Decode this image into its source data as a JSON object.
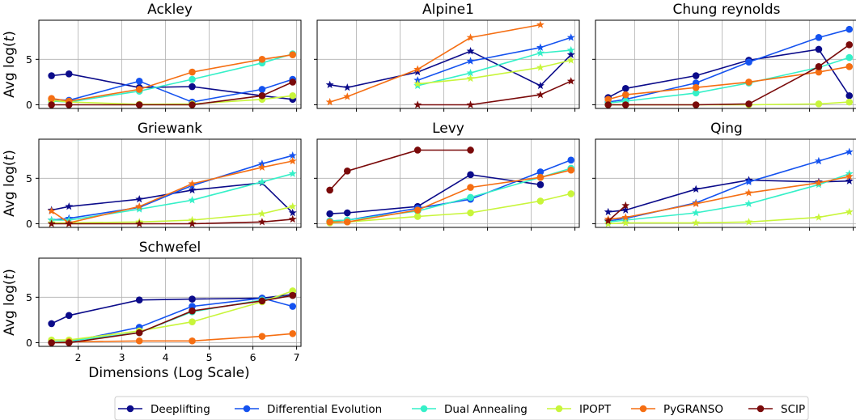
{
  "figure": {
    "xlabel": "Dimensions (Log Scale)",
    "ylabel": "Avg log(",
    "ylabel_var": "t",
    "ylabel_close": ")"
  },
  "colors": {
    "Deeplifting": "#0b0b8a",
    "Differential Evolution": "#1452ef",
    "Dual Annealing": "#35f0c8",
    "IPOPT": "#c8f53a",
    "PyGRANSO": "#f56e12",
    "SCIP": "#7a0a0a"
  },
  "legend": {
    "position": "bottom-center",
    "entries": [
      "Deeplifting",
      "Differential Evolution",
      "Dual Annealing",
      "IPOPT",
      "PyGRANSO",
      "SCIP"
    ]
  },
  "chart_data": [
    {
      "type": "line",
      "title": "Ackley",
      "xlim": [
        1.1,
        7.1
      ],
      "ylim": [
        -0.4,
        9.3
      ],
      "xticks": [
        2,
        3,
        4,
        5,
        6,
        7
      ],
      "yticks": [
        0,
        5
      ],
      "series": [
        {
          "name": "Deeplifting",
          "marker": "circle",
          "x": [
            1.39,
            1.79,
            3.4,
            4.61,
            6.21,
            6.91
          ],
          "y": [
            3.2,
            3.4,
            1.9,
            2.0,
            1.0,
            0.6
          ]
        },
        {
          "name": "Differential Evolution",
          "marker": "circle",
          "x": [
            1.39,
            1.79,
            3.4,
            4.61,
            6.21,
            6.91
          ],
          "y": [
            0.6,
            0.5,
            2.6,
            0.3,
            1.7,
            2.8
          ]
        },
        {
          "name": "Dual Annealing",
          "marker": "circle",
          "x": [
            1.39,
            1.79,
            3.4,
            4.61,
            6.21,
            6.91
          ],
          "y": [
            0.4,
            0.3,
            1.5,
            2.8,
            4.6,
            5.6
          ]
        },
        {
          "name": "IPOPT",
          "marker": "circle",
          "x": [
            1.39,
            1.79,
            3.4,
            4.61,
            6.21,
            6.91
          ],
          "y": [
            0.5,
            0.3,
            0.05,
            0.1,
            0.6,
            1.0
          ]
        },
        {
          "name": "PyGRANSO",
          "marker": "circle",
          "x": [
            1.39,
            1.79,
            3.4,
            4.61,
            6.21,
            6.91
          ],
          "y": [
            0.7,
            0.4,
            1.7,
            3.6,
            5.0,
            5.5
          ]
        },
        {
          "name": "SCIP",
          "marker": "circle",
          "x": [
            1.39,
            1.79,
            3.4,
            4.61,
            6.21,
            6.91
          ],
          "y": [
            0.0,
            0.0,
            0.0,
            0.0,
            1.0,
            2.5
          ]
        }
      ]
    },
    {
      "type": "line",
      "title": "Alpine1",
      "xlim": [
        1.1,
        7.1
      ],
      "ylim": [
        -0.4,
        9.3
      ],
      "xticks": [
        2,
        3,
        4,
        5,
        6,
        7
      ],
      "yticks": [
        0,
        5
      ],
      "series": [
        {
          "name": "Deeplifting",
          "marker": "star",
          "x": [
            1.39,
            1.79,
            3.4,
            4.61,
            6.21,
            6.91
          ],
          "y": [
            2.2,
            1.9,
            3.6,
            5.9,
            2.1,
            5.5
          ]
        },
        {
          "name": "Differential Evolution",
          "marker": "star",
          "x": [
            3.4,
            4.61,
            6.21,
            6.91
          ],
          "y": [
            2.7,
            4.8,
            6.3,
            7.4
          ]
        },
        {
          "name": "Dual Annealing",
          "marker": "star",
          "x": [
            3.4,
            4.61,
            6.21,
            6.91
          ],
          "y": [
            2.1,
            3.5,
            5.7,
            6.0
          ]
        },
        {
          "name": "IPOPT",
          "marker": "star",
          "x": [
            3.4,
            4.61,
            6.21,
            6.91
          ],
          "y": [
            2.3,
            2.9,
            4.1,
            4.9
          ]
        },
        {
          "name": "PyGRANSO",
          "marker": "star",
          "x": [
            1.39,
            1.79,
            3.4,
            4.61,
            6.21
          ],
          "y": [
            0.3,
            0.9,
            3.9,
            7.4,
            8.8
          ]
        },
        {
          "name": "SCIP",
          "marker": "star",
          "x": [
            3.4,
            4.61,
            6.21,
            6.91
          ],
          "y": [
            0.0,
            0.0,
            1.1,
            2.6
          ]
        }
      ]
    },
    {
      "type": "line",
      "title": "Chung reynolds",
      "xlim": [
        1.1,
        7.1
      ],
      "ylim": [
        -0.4,
        9.3
      ],
      "xticks": [
        2,
        3,
        4,
        5,
        6,
        7
      ],
      "yticks": [
        0,
        5
      ],
      "series": [
        {
          "name": "Deeplifting",
          "marker": "circle",
          "x": [
            1.39,
            1.79,
            3.4,
            4.61,
            6.21,
            6.91
          ],
          "y": [
            0.8,
            1.8,
            3.2,
            4.9,
            6.1,
            1.0
          ]
        },
        {
          "name": "Differential Evolution",
          "marker": "circle",
          "x": [
            1.39,
            1.79,
            3.4,
            4.61,
            6.21,
            6.91
          ],
          "y": [
            0.3,
            0.6,
            2.4,
            4.7,
            7.4,
            8.3
          ]
        },
        {
          "name": "Dual Annealing",
          "marker": "circle",
          "x": [
            1.39,
            1.79,
            3.4,
            4.61,
            6.21,
            6.91
          ],
          "y": [
            0.2,
            0.4,
            1.3,
            2.4,
            4.1,
            5.2
          ]
        },
        {
          "name": "IPOPT",
          "marker": "circle",
          "x": [
            1.39,
            1.79,
            3.4,
            4.61,
            6.21,
            6.91
          ],
          "y": [
            0.0,
            0.0,
            0.0,
            0.0,
            0.1,
            0.3
          ]
        },
        {
          "name": "PyGRANSO",
          "marker": "circle",
          "x": [
            1.39,
            1.79,
            3.4,
            4.61,
            6.21,
            6.91
          ],
          "y": [
            0.6,
            1.1,
            1.9,
            2.5,
            3.6,
            4.2
          ]
        },
        {
          "name": "SCIP",
          "marker": "circle",
          "x": [
            1.39,
            1.79,
            3.4,
            4.61,
            6.21,
            6.91
          ],
          "y": [
            0.0,
            0.0,
            0.0,
            0.1,
            4.2,
            6.6
          ]
        }
      ]
    },
    {
      "type": "line",
      "title": "Griewank",
      "xlim": [
        1.1,
        7.1
      ],
      "ylim": [
        -0.4,
        9.3
      ],
      "xticks": [
        2,
        3,
        4,
        5,
        6,
        7
      ],
      "yticks": [
        0,
        5
      ],
      "series": [
        {
          "name": "Deeplifting",
          "marker": "star",
          "x": [
            1.39,
            1.79,
            3.4,
            4.61,
            6.21,
            6.91
          ],
          "y": [
            1.5,
            1.9,
            2.7,
            3.7,
            4.5,
            1.2
          ]
        },
        {
          "name": "Differential Evolution",
          "marker": "star",
          "x": [
            1.39,
            1.79,
            3.4,
            4.61,
            6.21,
            6.91
          ],
          "y": [
            0.4,
            0.6,
            1.8,
            4.2,
            6.6,
            7.5
          ]
        },
        {
          "name": "Dual Annealing",
          "marker": "star",
          "x": [
            1.39,
            1.79,
            3.4,
            4.61,
            6.21,
            6.91
          ],
          "y": [
            0.4,
            0.4,
            1.6,
            2.6,
            4.6,
            5.5
          ]
        },
        {
          "name": "IPOPT",
          "marker": "star",
          "x": [
            1.39,
            1.79,
            3.4,
            4.61,
            6.21,
            6.91
          ],
          "y": [
            0.1,
            0.1,
            0.2,
            0.4,
            1.1,
            1.9
          ]
        },
        {
          "name": "PyGRANSO",
          "marker": "star",
          "x": [
            1.39,
            1.79,
            3.4,
            4.61,
            6.21,
            6.91
          ],
          "y": [
            1.4,
            0.1,
            1.9,
            4.4,
            6.2,
            6.9
          ]
        },
        {
          "name": "SCIP",
          "marker": "star",
          "x": [
            1.39,
            1.79,
            3.4,
            4.61,
            6.21,
            6.91
          ],
          "y": [
            0.0,
            0.0,
            0.0,
            0.0,
            0.2,
            0.5
          ]
        }
      ]
    },
    {
      "type": "line",
      "title": "Levy",
      "xlim": [
        1.1,
        7.1
      ],
      "ylim": [
        -0.4,
        9.3
      ],
      "xticks": [
        2,
        3,
        4,
        5,
        6,
        7
      ],
      "yticks": [
        0,
        5
      ],
      "series": [
        {
          "name": "Deeplifting",
          "marker": "circle",
          "x": [
            1.39,
            1.79,
            3.4,
            4.61,
            6.21
          ],
          "y": [
            1.1,
            1.2,
            1.9,
            5.4,
            4.3
          ]
        },
        {
          "name": "Differential Evolution",
          "marker": "circle",
          "x": [
            1.39,
            1.79,
            3.4,
            4.61,
            6.21,
            6.91
          ],
          "y": [
            0.3,
            0.4,
            1.7,
            2.7,
            5.7,
            7.0
          ]
        },
        {
          "name": "Dual Annealing",
          "marker": "circle",
          "x": [
            1.39,
            1.79,
            3.4,
            4.61,
            6.21,
            6.91
          ],
          "y": [
            0.3,
            0.4,
            1.4,
            2.9,
            5.1,
            6.1
          ]
        },
        {
          "name": "IPOPT",
          "marker": "circle",
          "x": [
            1.39,
            1.79,
            3.4,
            4.61,
            6.21,
            6.91
          ],
          "y": [
            0.1,
            0.2,
            0.8,
            1.2,
            2.5,
            3.3
          ]
        },
        {
          "name": "PyGRANSO",
          "marker": "circle",
          "x": [
            1.39,
            1.79,
            3.4,
            4.61,
            6.21,
            6.91
          ],
          "y": [
            0.2,
            0.2,
            1.5,
            4.0,
            5.1,
            5.9
          ]
        },
        {
          "name": "SCIP",
          "marker": "circle",
          "x": [
            1.39,
            1.79,
            3.4,
            4.61
          ],
          "y": [
            3.7,
            5.8,
            8.1,
            8.1
          ]
        }
      ]
    },
    {
      "type": "line",
      "title": "Qing",
      "xlim": [
        1.1,
        7.1
      ],
      "ylim": [
        -0.4,
        9.3
      ],
      "xticks": [
        2,
        3,
        4,
        5,
        6,
        7
      ],
      "yticks": [
        0,
        5
      ],
      "series": [
        {
          "name": "Deeplifting",
          "marker": "star",
          "x": [
            1.39,
            1.79,
            3.4,
            4.61,
            6.21,
            6.91
          ],
          "y": [
            1.3,
            1.5,
            3.8,
            4.8,
            4.6,
            4.7
          ]
        },
        {
          "name": "Differential Evolution",
          "marker": "star",
          "x": [
            1.39,
            1.79,
            3.4,
            4.61,
            6.21,
            6.91
          ],
          "y": [
            0.3,
            0.6,
            2.3,
            4.6,
            6.9,
            7.9
          ]
        },
        {
          "name": "Dual Annealing",
          "marker": "star",
          "x": [
            1.39,
            1.79,
            3.4,
            4.61,
            6.21,
            6.91
          ],
          "y": [
            0.2,
            0.4,
            1.2,
            2.2,
            4.3,
            5.5
          ]
        },
        {
          "name": "IPOPT",
          "marker": "star",
          "x": [
            1.39,
            1.79,
            3.4,
            4.61,
            6.21,
            6.91
          ],
          "y": [
            0.0,
            0.1,
            0.1,
            0.2,
            0.7,
            1.3
          ]
        },
        {
          "name": "PyGRANSO",
          "marker": "star",
          "x": [
            1.39,
            1.79,
            3.4,
            4.61,
            6.21,
            6.91
          ],
          "y": [
            0.5,
            0.7,
            2.2,
            3.4,
            4.5,
            5.2
          ]
        },
        {
          "name": "SCIP",
          "marker": "star",
          "x": [
            1.39,
            1.79
          ],
          "y": [
            0.3,
            2.0
          ]
        }
      ]
    },
    {
      "type": "line",
      "title": "Schwefel",
      "xlim": [
        1.1,
        7.1
      ],
      "ylim": [
        -0.4,
        9.3
      ],
      "xticks": [
        2,
        3,
        4,
        5,
        6,
        7
      ],
      "yticks": [
        0,
        5
      ],
      "series": [
        {
          "name": "Deeplifting",
          "marker": "circle",
          "x": [
            1.39,
            1.79,
            3.4,
            4.61,
            6.21,
            6.91
          ],
          "y": [
            2.1,
            3.0,
            4.7,
            4.8,
            4.9,
            5.3
          ]
        },
        {
          "name": "Differential Evolution",
          "marker": "circle",
          "x": [
            1.39,
            1.79,
            3.4,
            4.61,
            6.21,
            6.91
          ],
          "y": [
            0.1,
            0.1,
            1.7,
            4.0,
            4.9,
            4.0
          ]
        },
        {
          "name": "Dual Annealing",
          "marker": "circle",
          "x": [
            1.39,
            1.79,
            3.4,
            4.61,
            6.21,
            6.91
          ],
          "y": [
            0.1,
            0.2,
            1.1,
            3.4,
            4.7,
            5.2
          ]
        },
        {
          "name": "IPOPT",
          "marker": "circle",
          "x": [
            1.39,
            1.79,
            3.4,
            4.61,
            6.21,
            6.91
          ],
          "y": [
            0.3,
            0.3,
            1.3,
            2.3,
            4.5,
            5.7
          ]
        },
        {
          "name": "PyGRANSO",
          "marker": "circle",
          "x": [
            1.39,
            1.79,
            3.4,
            4.61,
            6.21,
            6.91
          ],
          "y": [
            0.0,
            0.1,
            0.2,
            0.2,
            0.7,
            1.0
          ]
        },
        {
          "name": "SCIP",
          "marker": "circle",
          "x": [
            1.39,
            1.79,
            3.4,
            4.61,
            6.21,
            6.91
          ],
          "y": [
            0.0,
            0.0,
            1.1,
            3.5,
            4.6,
            5.2
          ]
        }
      ]
    }
  ]
}
